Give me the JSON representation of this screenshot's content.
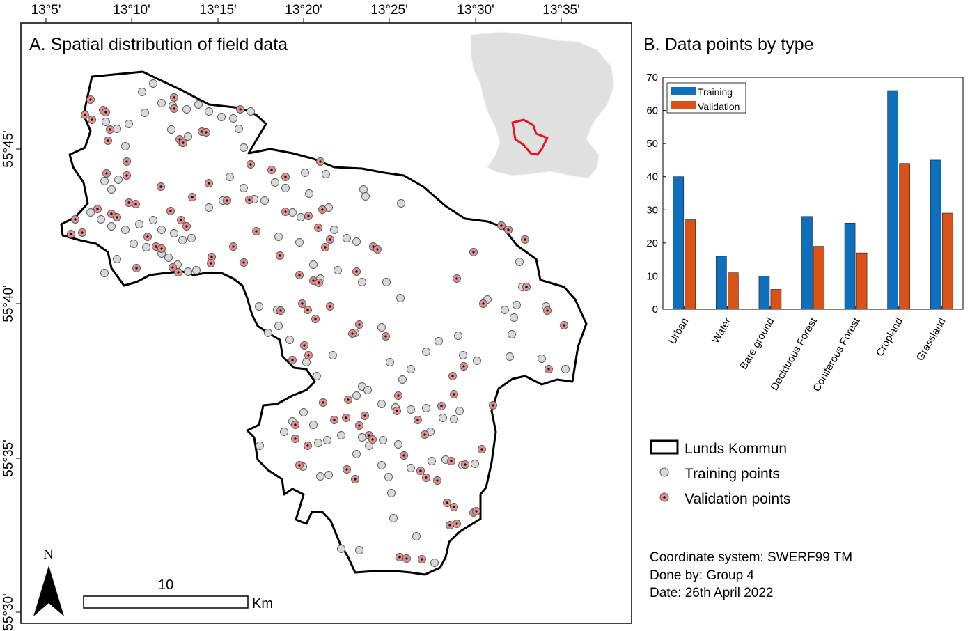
{
  "map": {
    "title": "A. Spatial distribution of field data",
    "lon_ticks": [
      "13°5'",
      "13°10'",
      "13°15'",
      "13°20'",
      "13°25'",
      "13°30'",
      "13°35'"
    ],
    "lat_ticks": [
      "55°45'",
      "55°40'",
      "55°35'",
      "55°30'"
    ],
    "north_label": "N",
    "scale_value": "10",
    "scale_unit": "Km",
    "boundary_name": "Lunds Kommun",
    "inset_highlight_color": "#e8141c",
    "inset_region_color": "#e0e0e0"
  },
  "legend": {
    "boundary_label": "Lunds Kommun",
    "training_label": "Training points",
    "validation_label": "Validation points",
    "training_color": "#d9d9d9",
    "validation_color": "#e58e8e"
  },
  "credits": {
    "line1": "Coordinate system: SWERF99 TM",
    "line2": "Done by: Group 4",
    "line3": "Date: 26th April 2022"
  },
  "chart_data": {
    "type": "bar",
    "title": "B. Data points by type",
    "categories": [
      "Urban",
      "Water",
      "Bare ground",
      "Deciduous Forest",
      "Coniferous Forest",
      "Cropland",
      "Grassland"
    ],
    "series": [
      {
        "name": "Training",
        "values": [
          40,
          16,
          10,
          28,
          26,
          66,
          45
        ],
        "color": "#0f6fbf"
      },
      {
        "name": "Validation",
        "values": [
          27,
          11,
          6,
          19,
          17,
          44,
          29
        ],
        "color": "#d95319"
      }
    ],
    "yticks": [
      0,
      10,
      20,
      30,
      40,
      50,
      60,
      70
    ],
    "ylim": [
      0,
      70
    ],
    "legend_position": "top-left",
    "grid": false
  }
}
